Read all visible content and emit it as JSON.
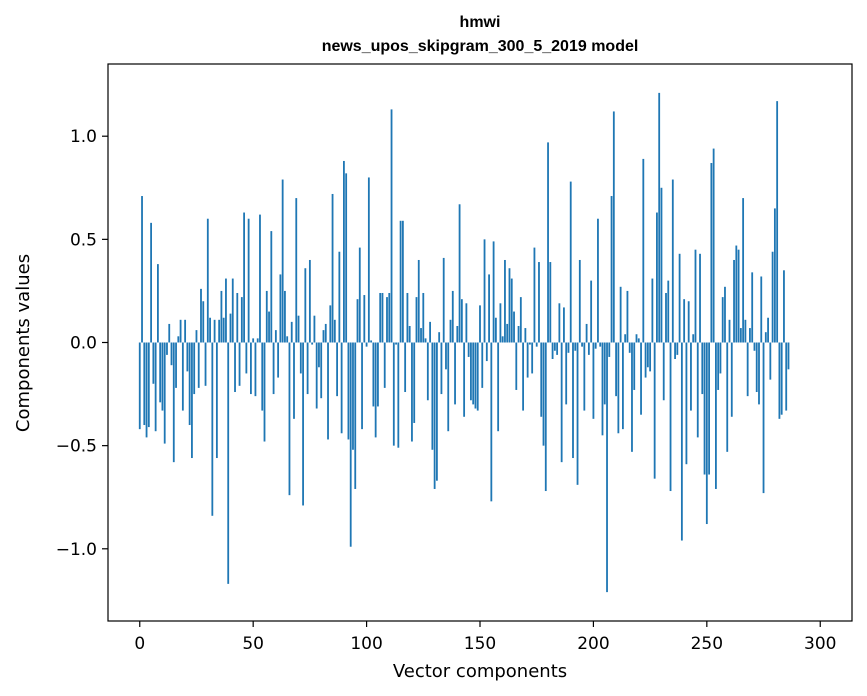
{
  "chart_data": {
    "type": "bar",
    "title_line1": "hmwi",
    "title_line2": "news_upos_skipgram_300_5_2019 model",
    "xlabel": "Vector components",
    "ylabel": "Components values",
    "xlim": [
      -14,
      314
    ],
    "ylim": [
      -1.35,
      1.35
    ],
    "xticks": [
      0,
      50,
      100,
      150,
      200,
      250,
      300
    ],
    "xtick_labels": [
      "0",
      "50",
      "100",
      "150",
      "200",
      "250",
      "300"
    ],
    "yticks": [
      -1.0,
      -0.5,
      0.0,
      0.5,
      1.0
    ],
    "ytick_labels": [
      "−1.0",
      "−0.5",
      "0.0",
      "0.5",
      "1.0"
    ],
    "bar_color": "#1f77b4",
    "values": [
      -0.42,
      0.71,
      -0.4,
      -0.46,
      -0.41,
      0.58,
      -0.2,
      -0.43,
      0.38,
      -0.29,
      -0.33,
      -0.49,
      -0.06,
      0.09,
      -0.11,
      -0.58,
      -0.22,
      0.03,
      0.11,
      -0.33,
      0.11,
      -0.14,
      -0.4,
      -0.56,
      -0.25,
      0.06,
      -0.22,
      0.26,
      0.2,
      -0.21,
      0.6,
      0.12,
      -0.84,
      0.11,
      -0.56,
      0.11,
      0.25,
      0.12,
      0.31,
      -1.17,
      0.14,
      0.31,
      -0.24,
      0.24,
      -0.21,
      0.22,
      0.63,
      -0.15,
      0.6,
      -0.25,
      0.02,
      -0.26,
      0.02,
      0.62,
      -0.33,
      -0.48,
      0.25,
      0.15,
      0.54,
      -0.25,
      0.06,
      -0.17,
      0.33,
      0.79,
      0.25,
      0.03,
      -0.74,
      0.1,
      -0.37,
      0.7,
      0.13,
      -0.15,
      -0.79,
      0.36,
      -0.25,
      0.4,
      -0.01,
      0.13,
      -0.32,
      -0.12,
      -0.27,
      0.06,
      0.09,
      -0.47,
      0.18,
      0.72,
      0.11,
      -0.26,
      0.44,
      -0.44,
      0.88,
      0.82,
      -0.47,
      -0.99,
      -0.52,
      -0.71,
      0.21,
      0.46,
      -0.42,
      0.23,
      -0.02,
      0.8,
      0.01,
      -0.31,
      -0.46,
      -0.31,
      0.24,
      0.24,
      -0.22,
      0.22,
      0.24,
      1.13,
      -0.5,
      -0.01,
      -0.51,
      0.59,
      0.59,
      -0.24,
      0.24,
      0.08,
      -0.48,
      -0.39,
      0.22,
      0.4,
      0.07,
      0.24,
      0.02,
      -0.28,
      0.1,
      -0.52,
      -0.71,
      -0.67,
      0.05,
      -0.25,
      0.41,
      -0.13,
      -0.43,
      0.11,
      0.25,
      -0.3,
      0.08,
      0.67,
      0.21,
      -0.36,
      0.19,
      -0.07,
      -0.28,
      -0.3,
      -0.32,
      -0.33,
      0.18,
      -0.22,
      0.5,
      -0.09,
      0.33,
      -0.77,
      0.49,
      0.12,
      -0.43,
      0.19,
      0.03,
      0.4,
      0.09,
      0.36,
      0.31,
      0.15,
      -0.23,
      0.08,
      0.22,
      -0.33,
      0.07,
      -0.17,
      -0.01,
      -0.15,
      0.46,
      -0.02,
      0.39,
      -0.36,
      -0.5,
      -0.72,
      0.97,
      0.39,
      -0.08,
      -0.04,
      -0.06,
      0.19,
      -0.58,
      0.17,
      -0.3,
      -0.05,
      0.78,
      -0.56,
      -0.04,
      -0.69,
      0.4,
      -0.02,
      -0.33,
      0.09,
      -0.06,
      0.3,
      -0.37,
      -0.03,
      0.6,
      -0.02,
      -0.45,
      -0.3,
      -1.21,
      -0.07,
      0.71,
      1.12,
      -0.26,
      -0.44,
      0.27,
      -0.42,
      0.04,
      0.25,
      -0.05,
      -0.53,
      -0.23,
      0.04,
      0.02,
      -0.35,
      0.89,
      -0.17,
      -0.12,
      -0.14,
      0.31,
      -0.66,
      0.63,
      1.21,
      0.75,
      -0.28,
      0.24,
      0.3,
      -0.72,
      0.79,
      -0.08,
      -0.06,
      0.43,
      -0.96,
      0.21,
      -0.59,
      0.2,
      -0.33,
      0.04,
      0.45,
      -0.46,
      0.43,
      -0.25,
      -0.64,
      -0.88,
      -0.64,
      0.87,
      0.94,
      -0.71,
      -0.23,
      -0.15,
      0.22,
      0.27,
      -0.53,
      0.11,
      -0.36,
      0.4,
      0.47,
      0.45,
      0.07,
      0.7,
      0.11,
      -0.26,
      0.07,
      0.34,
      -0.04,
      -0.24,
      -0.3,
      0.32,
      -0.73,
      0.05,
      0.12,
      -0.18,
      0.44,
      0.65,
      1.17,
      -0.37,
      -0.35,
      0.35,
      -0.33,
      -0.13
    ]
  }
}
